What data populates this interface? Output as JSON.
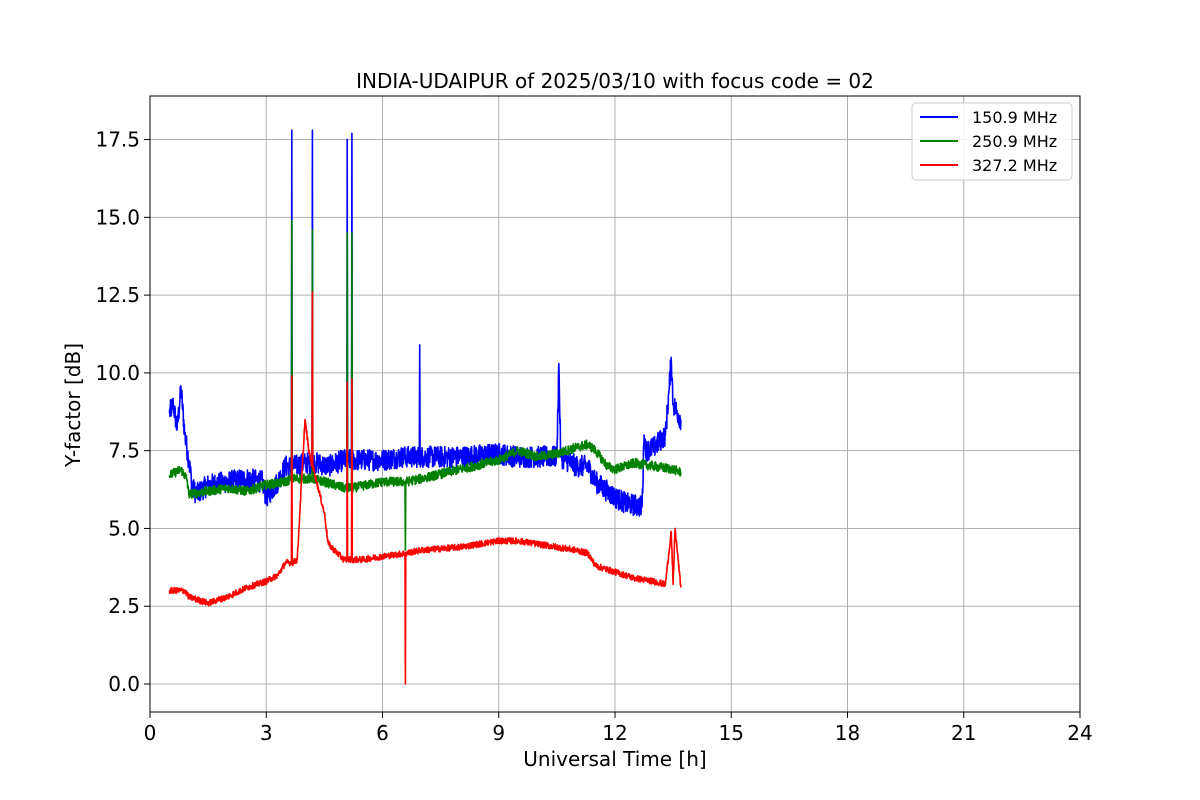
{
  "chart_data": {
    "type": "line",
    "title": "INDIA-UDAIPUR of 2025/03/10 with focus code = 02",
    "xlabel": "Universal Time [h]",
    "ylabel": "Y-factor [dB]",
    "xlim": [
      0,
      24
    ],
    "ylim": [
      -0.9,
      18.9
    ],
    "xticks": [
      0,
      3,
      6,
      9,
      12,
      15,
      18,
      21,
      24
    ],
    "xtick_labels": [
      "0",
      "3",
      "6",
      "9",
      "12",
      "15",
      "18",
      "21",
      "24"
    ],
    "yticks": [
      0,
      2.5,
      5,
      7.5,
      10,
      12.5,
      15,
      17.5
    ],
    "ytick_labels": [
      "0.0",
      "2.5",
      "5.0",
      "7.5",
      "10.0",
      "12.5",
      "15.0",
      "17.5"
    ],
    "grid": true,
    "legend_position": "top-right",
    "series": [
      {
        "name": "150.9 MHz",
        "color": "#0000ff",
        "noise": 0.35,
        "x": [
          0.5,
          0.6,
          0.7,
          0.8,
          0.9,
          1.0,
          1.1,
          1.2,
          1.5,
          2.0,
          2.5,
          2.9,
          3.0,
          3.3,
          3.5,
          3.65,
          3.66,
          3.67,
          3.7,
          4.0,
          4.18,
          4.19,
          4.2,
          4.3,
          4.6,
          5.0,
          5.08,
          5.09,
          5.1,
          5.2,
          5.21,
          5.22,
          5.3,
          6.0,
          6.5,
          6.95,
          6.96,
          6.97,
          7.0,
          8.0,
          9.0,
          9.5,
          10.0,
          10.5,
          10.55,
          10.6,
          11.0,
          11.3,
          11.5,
          11.8,
          12.0,
          12.3,
          12.7,
          12.75,
          12.8,
          13.0,
          13.3,
          13.4,
          13.45,
          13.5,
          13.7
        ],
        "y": [
          8.7,
          9.0,
          8.2,
          9.5,
          8.0,
          7.2,
          6.3,
          6.1,
          6.4,
          6.5,
          6.6,
          6.5,
          6.0,
          6.5,
          7.0,
          7.0,
          17.8,
          7.0,
          7.0,
          7.1,
          7.1,
          17.8,
          7.1,
          7.1,
          7.0,
          7.2,
          7.2,
          17.5,
          7.2,
          7.2,
          17.7,
          7.2,
          7.2,
          7.2,
          7.3,
          7.3,
          10.9,
          7.3,
          7.3,
          7.3,
          7.4,
          7.3,
          7.3,
          7.3,
          10.3,
          7.3,
          7.0,
          7.0,
          6.5,
          6.2,
          6.0,
          5.8,
          5.7,
          8.0,
          7.5,
          7.6,
          8.0,
          9.5,
          10.5,
          9.0,
          8.5
        ]
      },
      {
        "name": "250.9 MHz",
        "color": "#008000",
        "noise": 0.15,
        "x": [
          0.5,
          0.8,
          0.95,
          1.0,
          1.5,
          2.0,
          2.5,
          3.0,
          3.5,
          3.65,
          3.66,
          3.67,
          4.0,
          4.18,
          4.19,
          4.2,
          4.5,
          5.0,
          5.08,
          5.09,
          5.1,
          5.2,
          5.21,
          5.22,
          6.0,
          6.58,
          6.59,
          6.6,
          7.0,
          8.0,
          9.0,
          9.5,
          10.0,
          10.5,
          11.0,
          11.3,
          11.5,
          11.8,
          12.0,
          12.5,
          13.0,
          13.5,
          13.7
        ],
        "y": [
          6.7,
          6.9,
          6.6,
          6.1,
          6.2,
          6.3,
          6.2,
          6.4,
          6.5,
          6.6,
          14.9,
          6.6,
          6.6,
          6.6,
          14.6,
          6.6,
          6.5,
          6.3,
          6.3,
          14.5,
          6.3,
          6.3,
          14.5,
          6.3,
          6.5,
          6.5,
          4.3,
          6.5,
          6.6,
          6.9,
          7.2,
          7.5,
          7.3,
          7.4,
          7.6,
          7.7,
          7.5,
          7.0,
          6.9,
          7.1,
          7.0,
          6.9,
          6.8
        ]
      },
      {
        "name": "327.2 MHz",
        "color": "#ff0000",
        "noise": 0.1,
        "x": [
          0.5,
          0.9,
          1.0,
          1.5,
          2.0,
          2.5,
          3.0,
          3.3,
          3.5,
          3.65,
          3.66,
          3.67,
          3.8,
          4.0,
          4.1,
          4.18,
          4.19,
          4.2,
          4.3,
          4.4,
          4.5,
          4.6,
          5.0,
          5.08,
          5.09,
          5.1,
          5.2,
          5.21,
          5.22,
          5.5,
          6.0,
          6.58,
          6.59,
          6.6,
          7.0,
          8.0,
          9.0,
          9.5,
          10.0,
          10.5,
          11.0,
          11.3,
          11.5,
          12.0,
          12.5,
          13.0,
          13.3,
          13.45,
          13.5,
          13.55,
          13.7
        ],
        "y": [
          3.0,
          3.0,
          2.8,
          2.6,
          2.8,
          3.1,
          3.3,
          3.5,
          3.9,
          3.9,
          9.9,
          3.9,
          4.0,
          8.5,
          7.5,
          7.0,
          12.6,
          7.0,
          6.5,
          6.0,
          5.5,
          4.5,
          4.0,
          4.0,
          9.7,
          4.0,
          4.0,
          9.8,
          4.0,
          4.0,
          4.1,
          4.2,
          0.0,
          4.2,
          4.3,
          4.4,
          4.6,
          4.6,
          4.5,
          4.4,
          4.3,
          4.2,
          3.8,
          3.6,
          3.4,
          3.3,
          3.2,
          4.9,
          3.2,
          5.0,
          3.1
        ]
      }
    ]
  }
}
